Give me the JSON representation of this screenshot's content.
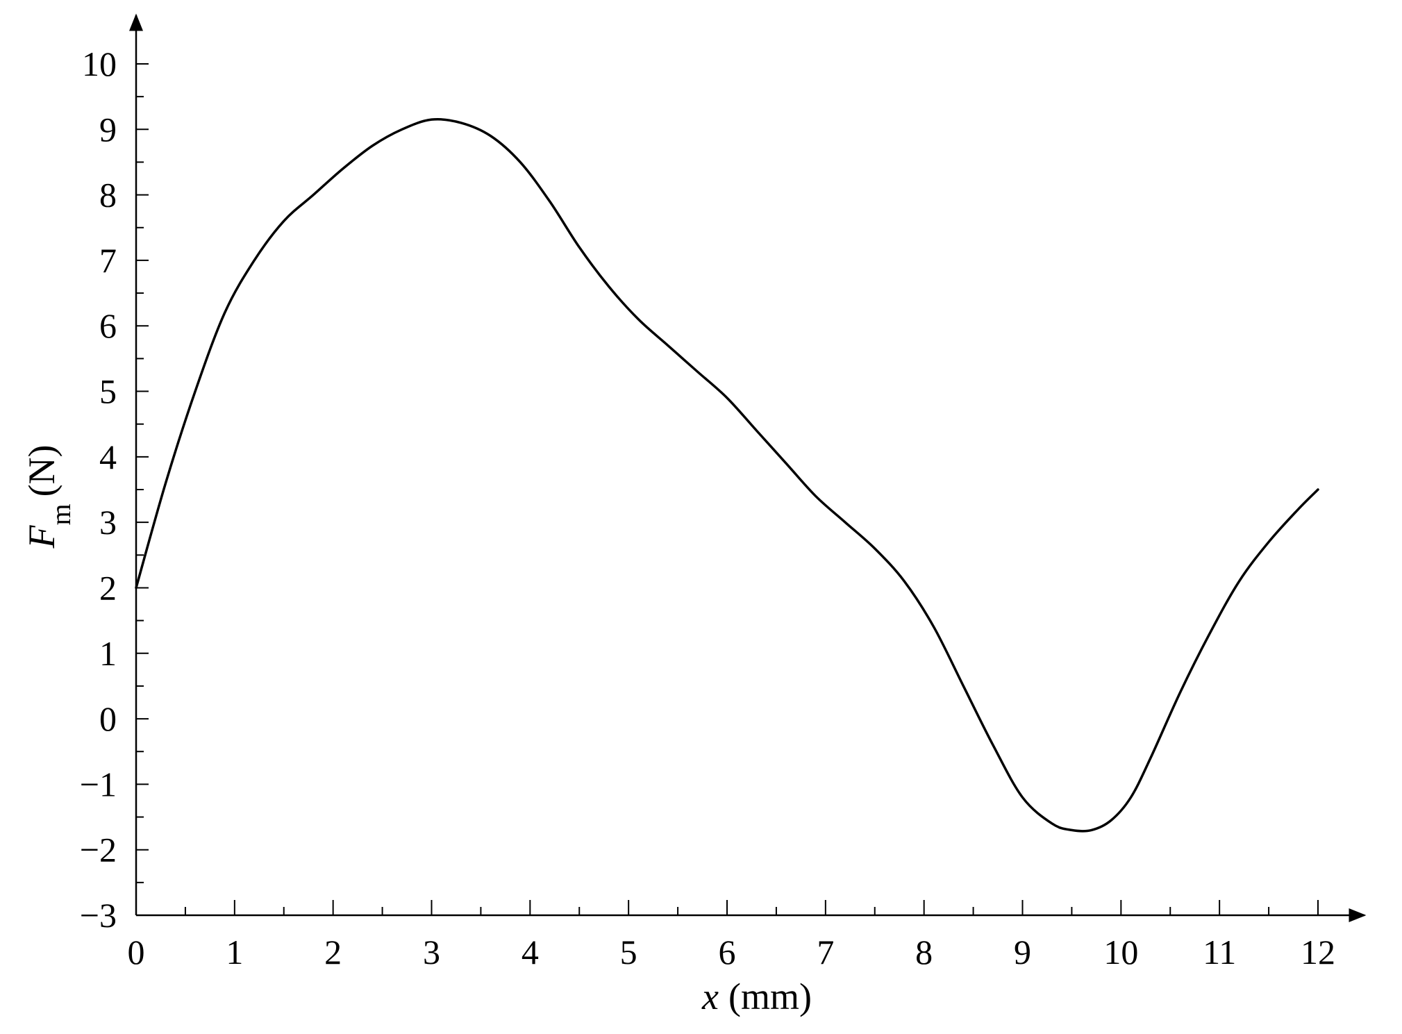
{
  "chart_data": {
    "type": "line",
    "title": "",
    "xlabel": {
      "symbol": "x",
      "unit": "(mm)"
    },
    "ylabel": {
      "symbol": "F",
      "subscript": "m",
      "unit": "(N)"
    },
    "xlim": [
      0,
      12
    ],
    "ylim": [
      -3,
      10
    ],
    "grid": false,
    "legend": "none",
    "x_ticks": [
      0,
      1,
      2,
      3,
      4,
      5,
      6,
      7,
      8,
      9,
      10,
      11,
      12
    ],
    "x_tick_labels": [
      "0",
      "1",
      "2",
      "3",
      "4",
      "5",
      "6",
      "7",
      "8",
      "9",
      "10",
      "11",
      "12"
    ],
    "y_ticks": [
      -3,
      -2,
      -1,
      0,
      1,
      2,
      3,
      4,
      5,
      6,
      7,
      8,
      9,
      10
    ],
    "y_tick_labels": [
      "−3",
      "−2",
      "−1",
      "0",
      "1",
      "2",
      "3",
      "4",
      "5",
      "6",
      "7",
      "8",
      "9",
      "10"
    ],
    "line_color": "#000000",
    "series": [
      {
        "x": [
          0,
          0.3,
          0.6,
          0.9,
          1.2,
          1.5,
          1.8,
          2.1,
          2.4,
          2.7,
          3.0,
          3.3,
          3.6,
          3.9,
          4.2,
          4.5,
          4.8,
          5.1,
          5.4,
          5.7,
          6.0,
          6.3,
          6.6,
          6.9,
          7.2,
          7.5,
          7.8,
          8.1,
          8.4,
          8.7,
          9.0,
          9.3,
          9.5,
          9.7,
          9.9,
          10.1,
          10.3,
          10.6,
          10.9,
          11.2,
          11.5,
          11.8,
          12.0
        ],
        "values": [
          2.0,
          3.6,
          5.0,
          6.2,
          7.0,
          7.6,
          8.0,
          8.4,
          8.75,
          9.0,
          9.15,
          9.1,
          8.9,
          8.5,
          7.9,
          7.2,
          6.6,
          6.1,
          5.7,
          5.3,
          4.9,
          4.4,
          3.9,
          3.4,
          3.0,
          2.6,
          2.1,
          1.4,
          0.5,
          -0.4,
          -1.2,
          -1.6,
          -1.7,
          -1.7,
          -1.55,
          -1.2,
          -0.6,
          0.4,
          1.3,
          2.1,
          2.7,
          3.2,
          3.5
        ]
      }
    ]
  }
}
